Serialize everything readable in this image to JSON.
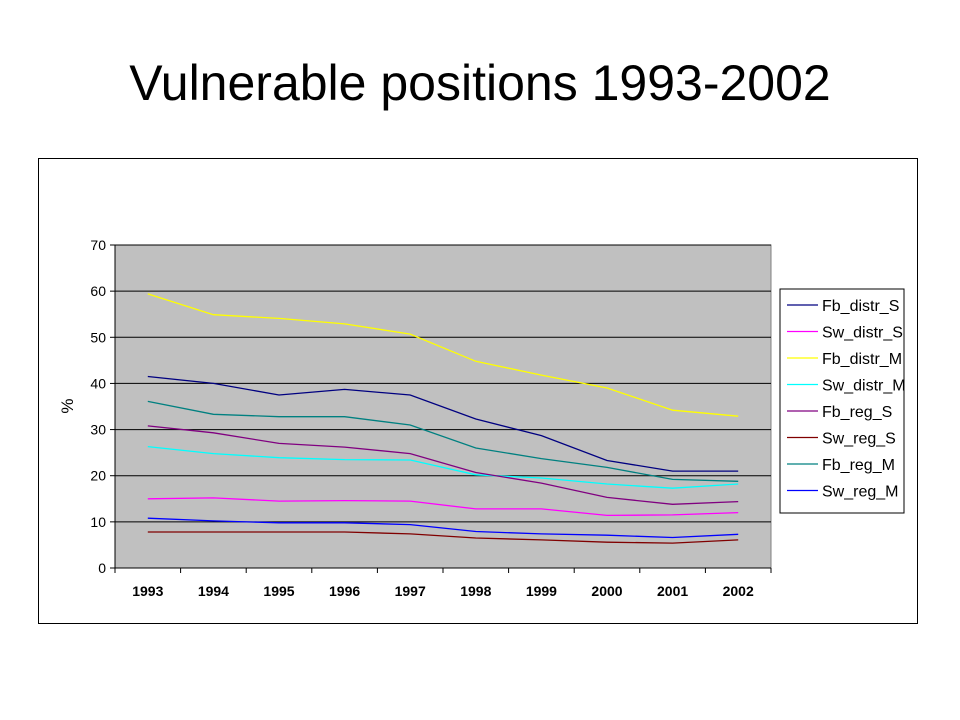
{
  "slide": {
    "title": "Vulnerable positions 1993-2002"
  },
  "chart_data": {
    "type": "line",
    "title": "",
    "xlabel": "",
    "ylabel": "%",
    "ylim": [
      0,
      70
    ],
    "yticks": [
      0,
      10,
      20,
      30,
      40,
      50,
      60,
      70
    ],
    "categories": [
      "1993",
      "1994",
      "1995",
      "1996",
      "1997",
      "1998",
      "1999",
      "2000",
      "2001",
      "2002"
    ],
    "grid": "horizontal",
    "plot_background": "#c0c0c0",
    "legend_position": "right",
    "series": [
      {
        "name": "Fb_distr_S",
        "color": "#000080",
        "values": [
          41.5,
          40,
          37.5,
          38.7,
          37.5,
          32.3,
          28.7,
          23.3,
          21,
          21
        ]
      },
      {
        "name": "Sw_distr_S",
        "color": "#ff00ff",
        "values": [
          15,
          15.2,
          14.5,
          14.6,
          14.5,
          12.8,
          12.8,
          11.4,
          11.5,
          12
        ]
      },
      {
        "name": "Fb_distr_M",
        "color": "#ffff00",
        "values": [
          59.4,
          54.9,
          54.1,
          52.9,
          50.7,
          44.8,
          41.8,
          39,
          34.2,
          32.9
        ]
      },
      {
        "name": "Sw_distr_M",
        "color": "#00ffff",
        "values": [
          26.3,
          24.8,
          23.9,
          23.5,
          23.4,
          20.2,
          19.5,
          18.2,
          17.3,
          18.2
        ]
      },
      {
        "name": "Fb_reg_S",
        "color": "#800080",
        "values": [
          30.8,
          29.3,
          27,
          26.2,
          24.8,
          20.7,
          18.4,
          15.3,
          13.8,
          14.4
        ]
      },
      {
        "name": "Sw_reg_S",
        "color": "#800000",
        "values": [
          7.8,
          7.8,
          7.8,
          7.8,
          7.4,
          6.5,
          6.1,
          5.6,
          5.4,
          6.1
        ]
      },
      {
        "name": "Fb_reg_M",
        "color": "#008080",
        "values": [
          36.1,
          33.3,
          32.8,
          32.8,
          31,
          26,
          23.7,
          21.8,
          19.2,
          18.8
        ]
      },
      {
        "name": "Sw_reg_M",
        "color": "#0000ff",
        "values": [
          10.8,
          10.2,
          9.8,
          9.8,
          9.4,
          7.9,
          7.4,
          7.1,
          6.6,
          7.3
        ]
      }
    ]
  }
}
